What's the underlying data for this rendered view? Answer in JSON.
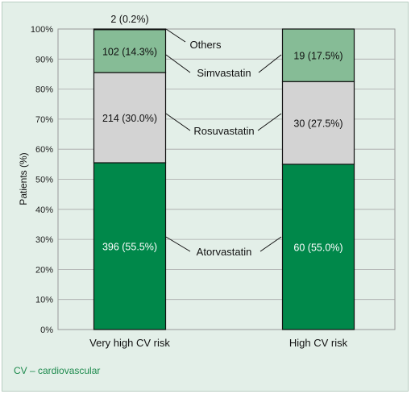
{
  "chart_data": {
    "type": "bar",
    "stacked": true,
    "ylabel": "Patients (%)",
    "ylim": [
      0,
      100
    ],
    "yticks": [
      "0%",
      "10%",
      "20%",
      "30%",
      "40%",
      "50%",
      "60%",
      "70%",
      "80%",
      "90%",
      "100%"
    ],
    "categories": [
      "Very high CV risk",
      "High CV risk"
    ],
    "grid": true,
    "series": [
      {
        "name": "Atorvastatin",
        "color": "#00884a",
        "values": [
          55.5,
          55.0
        ],
        "labels": [
          "396 (55.5%)",
          "60 (55.0%)"
        ]
      },
      {
        "name": "Rosuvastatin",
        "color": "#d3d3d3",
        "values": [
          30.0,
          27.5
        ],
        "labels": [
          "214 (30.0%)",
          "30 (27.5%)"
        ]
      },
      {
        "name": "Simvastatin",
        "color": "#86bc96",
        "values": [
          14.3,
          17.5
        ],
        "labels": [
          "102 (14.3%)",
          "19 (17.5%)"
        ]
      },
      {
        "name": "Others",
        "color": "#6e6e6e",
        "values": [
          0.2,
          0
        ],
        "labels": [
          "2 (0.2%)",
          ""
        ]
      }
    ],
    "footnote": "CV – cardiovascular"
  }
}
